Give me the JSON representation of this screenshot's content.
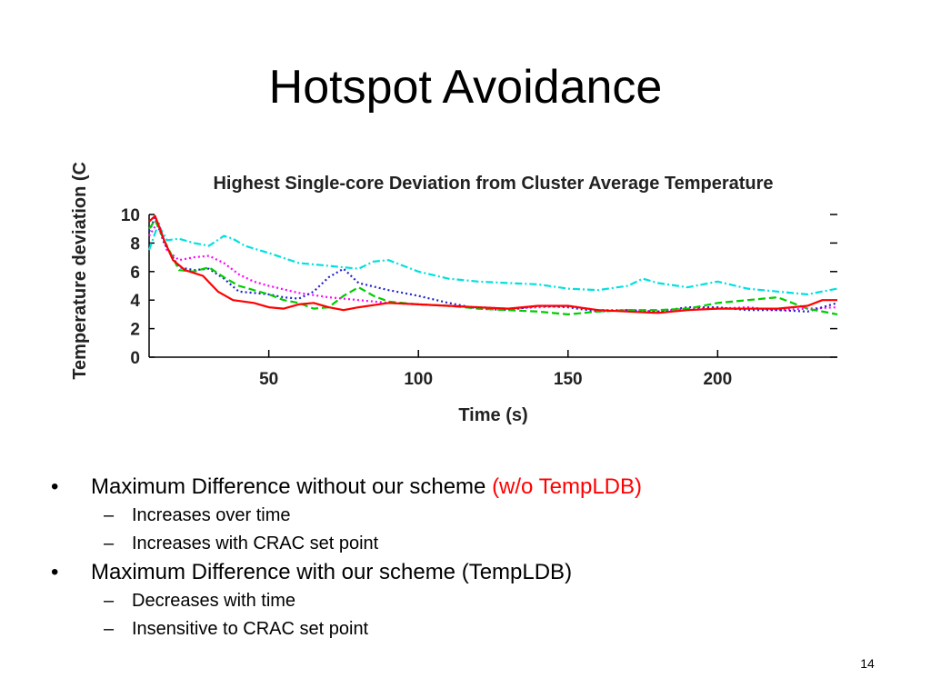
{
  "slide": {
    "title": "Hotspot Avoidance",
    "page_number": "14",
    "bullets": [
      {
        "text": "Maximum Difference without our scheme ",
        "highlight": "(w/o TempLDB)",
        "highlight_color": "#ff0000",
        "subitems": [
          "Increases over time",
          "Increases with CRAC set point"
        ]
      },
      {
        "text": "Maximum Difference with our scheme (TempLDB)",
        "highlight": "",
        "subitems": [
          "Decreases with time",
          "Insensitive to CRAC set point"
        ]
      }
    ]
  },
  "chart_data": {
    "type": "line",
    "title": "Highest Single-core Deviation from Cluster Average Temperature",
    "xlabel": "Time (s)",
    "ylabel": "Temperature deviation (C)",
    "xlim": [
      10,
      240
    ],
    "ylim": [
      0,
      10
    ],
    "xticks": [
      50,
      100,
      150,
      200
    ],
    "yticks": [
      0,
      2,
      4,
      6,
      8,
      10
    ],
    "legend": "none",
    "grid": false,
    "series": [
      {
        "color": "#00e0e0",
        "dash": "dashdot",
        "x": [
          10,
          13,
          16,
          20,
          25,
          30,
          35,
          38,
          42,
          50,
          60,
          70,
          80,
          85,
          90,
          100,
          110,
          120,
          130,
          140,
          150,
          160,
          170,
          175,
          180,
          190,
          200,
          210,
          220,
          230,
          240
        ],
        "y": [
          7.5,
          9.3,
          8.2,
          8.3,
          8.0,
          7.8,
          8.5,
          8.3,
          7.8,
          7.3,
          6.6,
          6.4,
          6.2,
          6.7,
          6.8,
          6.0,
          5.5,
          5.3,
          5.2,
          5.1,
          4.8,
          4.7,
          5.0,
          5.5,
          5.2,
          4.9,
          5.3,
          4.8,
          4.6,
          4.4,
          4.8
        ]
      },
      {
        "color": "#ff00ff",
        "dash": "dotted",
        "x": [
          10,
          13,
          16,
          20,
          25,
          30,
          35,
          40,
          45,
          50,
          60,
          70,
          80,
          90,
          100,
          110,
          120,
          130,
          140,
          150,
          160,
          170,
          180,
          190,
          200,
          210,
          220,
          230,
          240
        ],
        "y": [
          8.5,
          9.5,
          7.5,
          6.8,
          7.0,
          7.1,
          6.6,
          5.8,
          5.3,
          5.0,
          4.5,
          4.2,
          4.0,
          3.8,
          3.7,
          3.6,
          3.5,
          3.4,
          3.5,
          3.6,
          3.3,
          3.3,
          3.2,
          3.4,
          3.4,
          3.5,
          3.3,
          3.4,
          3.5
        ]
      },
      {
        "color": "#2222cc",
        "dash": "dotted",
        "x": [
          10,
          12,
          15,
          20,
          25,
          30,
          35,
          40,
          45,
          50,
          55,
          60,
          65,
          70,
          75,
          80,
          90,
          100,
          110,
          120,
          130,
          140,
          150,
          160,
          170,
          180,
          190,
          200,
          210,
          220,
          230,
          240
        ],
        "y": [
          8.8,
          9.8,
          8.0,
          6.3,
          6.1,
          6.2,
          5.5,
          4.6,
          4.5,
          4.4,
          4.2,
          4.1,
          4.6,
          5.6,
          6.2,
          5.2,
          4.7,
          4.3,
          3.8,
          3.4,
          3.3,
          3.6,
          3.5,
          3.2,
          3.3,
          3.2,
          3.5,
          3.5,
          3.3,
          3.3,
          3.2,
          3.8
        ]
      },
      {
        "color": "#00cc00",
        "dash": "dashed",
        "x": [
          10,
          12,
          15,
          20,
          25,
          30,
          35,
          40,
          45,
          50,
          55,
          60,
          65,
          70,
          75,
          80,
          85,
          90,
          100,
          110,
          120,
          130,
          140,
          150,
          160,
          170,
          180,
          190,
          200,
          210,
          220,
          230,
          240
        ],
        "y": [
          9.0,
          9.6,
          8.2,
          6.1,
          6.0,
          6.3,
          5.6,
          5.0,
          4.7,
          4.4,
          4.0,
          3.8,
          3.4,
          3.5,
          4.3,
          4.9,
          4.3,
          3.9,
          3.7,
          3.6,
          3.4,
          3.3,
          3.2,
          3.0,
          3.2,
          3.3,
          3.3,
          3.4,
          3.8,
          4.0,
          4.2,
          3.4,
          3.0
        ]
      },
      {
        "color": "#ff0000",
        "dash": "solid",
        "x": [
          10,
          12,
          15,
          18,
          22,
          28,
          33,
          38,
          45,
          50,
          55,
          60,
          65,
          70,
          75,
          80,
          90,
          100,
          110,
          120,
          130,
          140,
          150,
          160,
          170,
          180,
          190,
          200,
          210,
          220,
          230,
          235,
          240
        ],
        "y": [
          9.5,
          9.9,
          8.2,
          6.8,
          6.1,
          5.7,
          4.6,
          4.0,
          3.8,
          3.5,
          3.4,
          3.7,
          3.8,
          3.5,
          3.3,
          3.5,
          3.8,
          3.7,
          3.6,
          3.5,
          3.4,
          3.6,
          3.6,
          3.3,
          3.2,
          3.1,
          3.3,
          3.4,
          3.4,
          3.4,
          3.6,
          4.0,
          4.0
        ]
      }
    ]
  }
}
